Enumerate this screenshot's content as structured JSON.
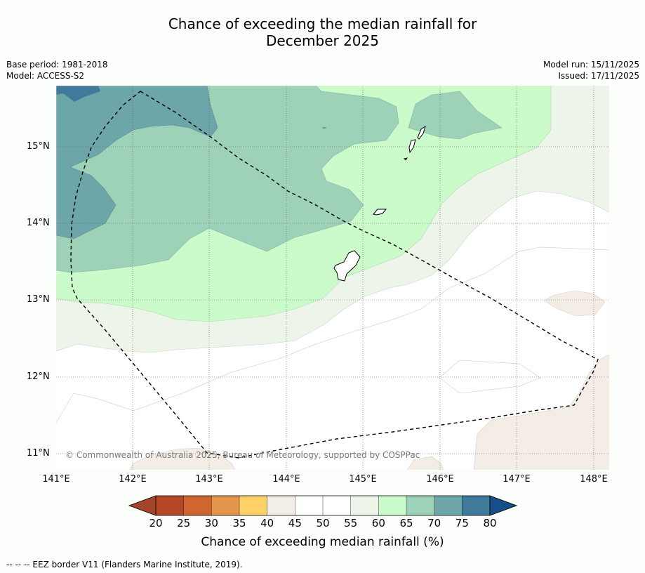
{
  "title_line1": "Chance of exceeding the median rainfall for",
  "title_line2": "December 2025",
  "meta_left": {
    "base_period": "Base period: 1981-2018",
    "model": "Model: ACCESS-S2"
  },
  "meta_right": {
    "model_run": "Model run: 15/11/2025",
    "issued": "Issued: 17/11/2025"
  },
  "axes": {
    "lat_labels": [
      "15°N",
      "14°N",
      "13°N",
      "12°N",
      "11°N"
    ],
    "lon_labels": [
      "141°E",
      "142°E",
      "143°E",
      "144°E",
      "145°E",
      "146°E",
      "147°E",
      "148°E"
    ]
  },
  "credit": "© Commonwealth of Australia 2025, Bureau of Meteorology, supported by COSPPac",
  "colorbar": {
    "labels": [
      "20",
      "25",
      "30",
      "35",
      "40",
      "45",
      "50",
      "55",
      "60",
      "65",
      "70",
      "75",
      "80"
    ],
    "colors": [
      "#a5432b",
      "#b5482a",
      "#cf6530",
      "#e3954a",
      "#fdd068",
      "#f3ede6",
      "#ffffff",
      "#ffffff",
      "#edf5ea",
      "#cbfbca",
      "#9dd1b8",
      "#6da6a8",
      "#3f7a9a",
      "#154f85"
    ],
    "title": "Chance of exceeding median rainfall (%)"
  },
  "footnote": "--  --  -- EEZ border V11 (Flanders Marine Institute, 2019)."
}
